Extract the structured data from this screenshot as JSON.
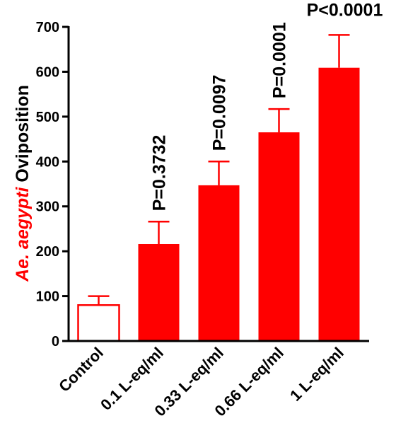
{
  "chart_data": {
    "type": "bar",
    "categories": [
      "Control",
      "0.1 L-eq/ml",
      "0.33 L-eq/ml",
      "0.66 L-eq/ml",
      "1 L-eq/ml"
    ],
    "values": [
      80,
      216,
      347,
      465,
      609
    ],
    "error_upper": [
      100,
      266,
      400,
      517,
      682
    ],
    "annotations": [
      "",
      "P=0.3732",
      "P=0.0097",
      "P=0.0001",
      "P<0.0001"
    ],
    "ylabel_italic": "Ae. aegypti",
    "ylabel_rest": " Oviposition",
    "ylim": [
      0,
      700
    ],
    "yticks": [
      0,
      100,
      200,
      300,
      400,
      500,
      600,
      700
    ],
    "colors": {
      "bar": "#ff0000",
      "control_fill": "#ffffff",
      "ylabel_italic": "#ff0000",
      "axis": "#000000"
    }
  }
}
